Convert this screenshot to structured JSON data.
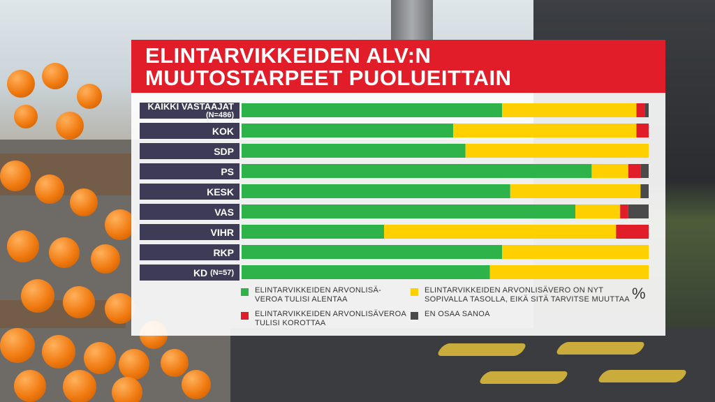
{
  "title": {
    "line1": "ELINTARVIKKEIDEN ALV:N",
    "line2": "MUUTOSTARPEET PUOLUEITTAIN"
  },
  "colors": {
    "green": "#2eb34a",
    "yellow": "#ffd000",
    "red": "#e11d2a",
    "dark": "#4a4a4a",
    "label_bg": "#3d3b55"
  },
  "legend": {
    "lower": "ELINTARVIKKEIDEN ARVONLISÄ-\nVEROA TULISI ALENTAA",
    "keep": "ELINTARVIKKEIDEN ARVONLISÄVERO ON NYT\nSOPIVALLA TASOLLA, EIKÄ SITÄ TARVITSE MUUTTAA",
    "raise": "ELINTARVIKKEIDEN ARVONLISÄVEROA\nTULISI KOROTTAA",
    "dont_know": "EN OSAA SANOA",
    "unit": "%"
  },
  "chart_data": {
    "type": "bar",
    "orientation": "horizontal",
    "stacked": true,
    "categories": [
      "KAIKKI VASTAAJAT (N=486)",
      "KOK",
      "SDP",
      "PS",
      "KESK",
      "VAS",
      "VIHR",
      "RKP",
      "KD (N=57)"
    ],
    "category_labels": [
      {
        "main": "KAIKKI VASTAAJAT",
        "sub": "(N=486)"
      },
      {
        "main": "KOK"
      },
      {
        "main": "SDP"
      },
      {
        "main": "PS"
      },
      {
        "main": "KESK"
      },
      {
        "main": "VAS"
      },
      {
        "main": "VIHR"
      },
      {
        "main": "RKP"
      },
      {
        "main": "KD",
        "sub": "(N=57)"
      }
    ],
    "series": [
      {
        "name": "ELINTARVIKKEIDEN ARVONLISÄVEROA TULISI ALENTAA",
        "color": "#2eb34a",
        "values": [
          64,
          52,
          55,
          86,
          66,
          82,
          35,
          64,
          61
        ]
      },
      {
        "name": "ELINTARVIKKEIDEN ARVONLISÄVERO ON NYT SOPIVALLA TASOLLA, EIKÄ SITÄ TARVITSE MUUTTAA",
        "color": "#ffd000",
        "values": [
          33,
          45,
          45,
          9,
          32,
          11,
          57,
          36,
          39
        ]
      },
      {
        "name": "ELINTARVIKKEIDEN ARVONLISÄVEROA TULISI KOROTTAA",
        "color": "#e11d2a",
        "values": [
          2,
          3,
          0,
          3,
          0,
          2,
          8,
          0,
          0
        ]
      },
      {
        "name": "EN OSAA SANOA",
        "color": "#4a4a4a",
        "values": [
          1,
          0,
          0,
          2,
          2,
          5,
          0,
          0,
          0
        ]
      }
    ],
    "xlim": [
      0,
      100
    ],
    "unit": "%",
    "legend_position": "bottom"
  }
}
